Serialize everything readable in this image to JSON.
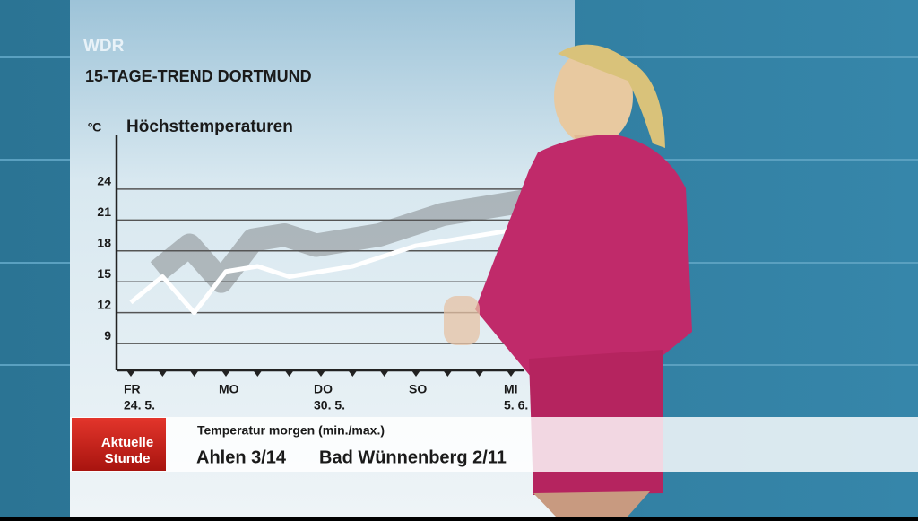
{
  "logo": "WDR",
  "heading": "15-TAGE-TREND DORTMUND",
  "chart_data": {
    "type": "line",
    "title": "Höchsttemperaturen",
    "y_label": "ºC",
    "categories": [
      "FR",
      null,
      null,
      "MO",
      null,
      null,
      "DO",
      null,
      null,
      "SO",
      null,
      null,
      "MI"
    ],
    "category_dates": [
      "24. 5.",
      null,
      null,
      null,
      null,
      null,
      "30. 5.",
      null,
      null,
      null,
      null,
      null,
      "5. 6."
    ],
    "series": [
      {
        "color": "#ffffff",
        "values": [
          13,
          15.5,
          12,
          16,
          16.5,
          15.5,
          16,
          16.5,
          17.5,
          18.5,
          19,
          19.5,
          20
        ]
      }
    ],
    "ylim": [
      6.4,
      29.3
    ],
    "yticks": [
      9,
      12,
      15,
      18,
      21,
      24
    ],
    "grid": true
  },
  "ticker": {
    "brand": [
      "Aktuelle",
      "Stunde"
    ],
    "caption": "Temperatur morgen (min./max.)",
    "items": [
      "Ahlen 3/14",
      "Bad Wünnenberg 2/11"
    ]
  }
}
